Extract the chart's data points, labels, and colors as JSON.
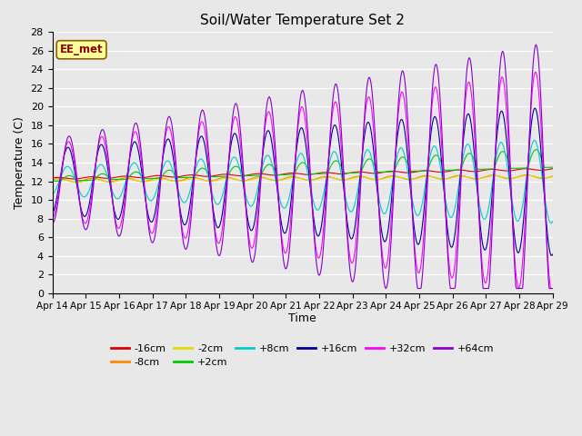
{
  "title": "Soil/Water Temperature Set 2",
  "xlabel": "Time",
  "ylabel": "Temperature (C)",
  "ylim": [
    0,
    28
  ],
  "yticks": [
    0,
    2,
    4,
    6,
    8,
    10,
    12,
    14,
    16,
    18,
    20,
    22,
    24,
    26,
    28
  ],
  "xtick_labels": [
    "Apr 14",
    "Apr 15",
    "Apr 16",
    "Apr 17",
    "Apr 18",
    "Apr 19",
    "Apr 20",
    "Apr 21",
    "Apr 22",
    "Apr 23",
    "Apr 24",
    "Apr 25",
    "Apr 26",
    "Apr 27",
    "Apr 28",
    "Apr 29"
  ],
  "annotation_text": "EE_met",
  "bg_color": "#e8e8e8",
  "series": [
    {
      "label": "-16cm",
      "color": "#dd0000"
    },
    {
      "label": "-8cm",
      "color": "#ff8800"
    },
    {
      "label": "-2cm",
      "color": "#dddd00"
    },
    {
      "label": "+2cm",
      "color": "#00cc00"
    },
    {
      "label": "+8cm",
      "color": "#00cccc"
    },
    {
      "label": "+16cm",
      "color": "#000099"
    },
    {
      "label": "+32cm",
      "color": "#ff00ff"
    },
    {
      "label": "+64cm",
      "color": "#8800cc"
    }
  ],
  "legend_ncol_row1": 6,
  "legend_ncol_row2": 2
}
